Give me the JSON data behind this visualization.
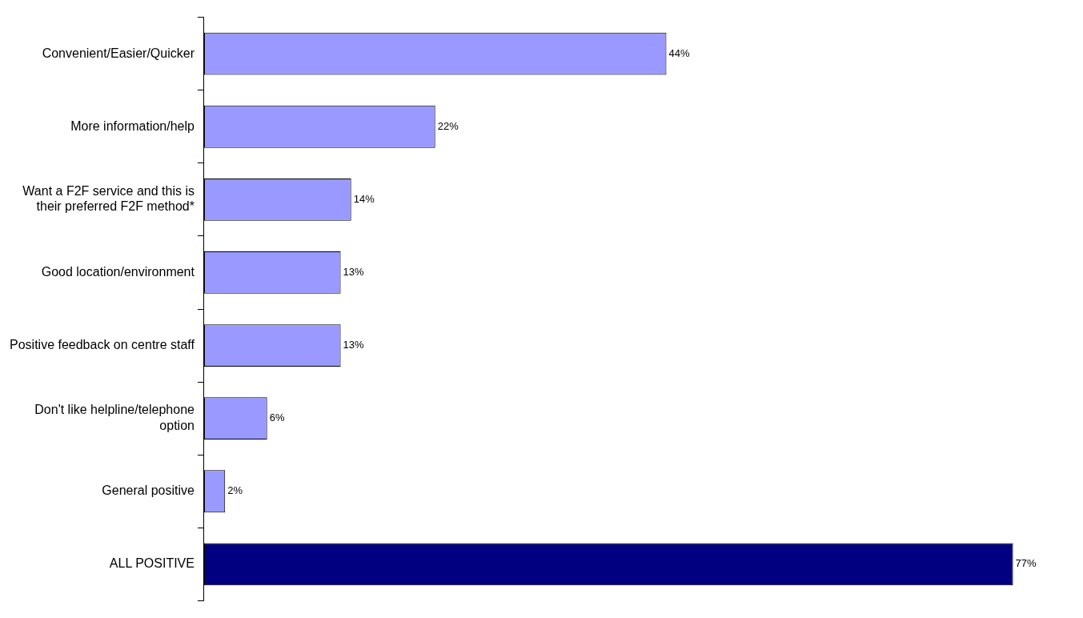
{
  "chart_data": {
    "type": "bar",
    "orientation": "horizontal",
    "categories": [
      "Convenient/Easier/Quicker",
      "More information/help",
      "Want a F2F service and this is their preferred F2F method*",
      "Good location/environment",
      "Positive feedback on centre staff",
      "Don't like helpline/telephone option",
      "General positive",
      "ALL POSITIVE"
    ],
    "values": [
      44,
      22,
      14,
      13,
      13,
      6,
      2,
      77
    ],
    "colors": [
      "#9999ff",
      "#9999ff",
      "#9999ff",
      "#9999ff",
      "#9999ff",
      "#9999ff",
      "#9999ff",
      "#000080"
    ],
    "value_labels": [
      "44%",
      "22%",
      "14%",
      "13%",
      "13%",
      "6%",
      "2%",
      "77%"
    ],
    "grid": false,
    "legend": false
  }
}
